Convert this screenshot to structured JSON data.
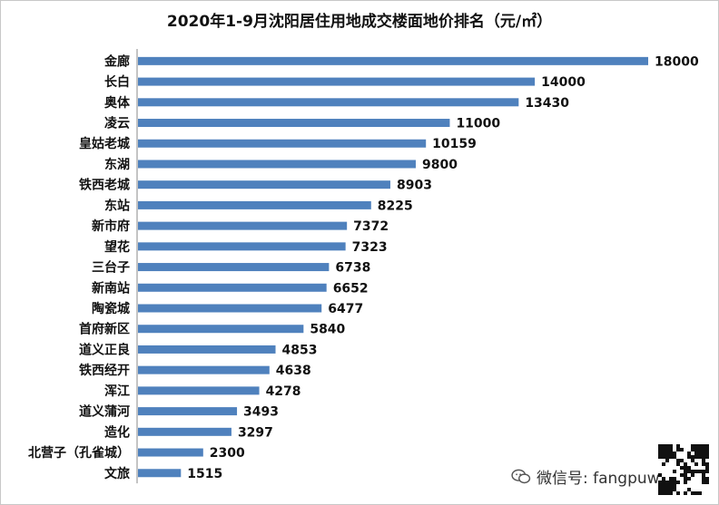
{
  "chart_data": {
    "type": "bar",
    "orientation": "horizontal",
    "title": "2020年1-9月沈阳居住用地成交楼面地价排名（元/㎡）",
    "categories": [
      "金廊",
      "长白",
      "奥体",
      "凌云",
      "皇姑老城",
      "东湖",
      "铁西老城",
      "东站",
      "新市府",
      "望花",
      "三台子",
      "新南站",
      "陶瓷城",
      "首府新区",
      "道义正良",
      "铁西经开",
      "浑江",
      "道义蒲河",
      "造化",
      "北营子（孔雀城）",
      "文旅"
    ],
    "values": [
      18000,
      14000,
      13430,
      11000,
      10159,
      9800,
      8903,
      8225,
      7372,
      7323,
      6738,
      6652,
      6477,
      5840,
      4853,
      4638,
      4278,
      3493,
      3297,
      2300,
      1515
    ],
    "data_labels": [
      "18000",
      "14000",
      "13430",
      "11000",
      "10159",
      "9800",
      "8903",
      "8225",
      "7372",
      "7323",
      "6738",
      "6652",
      "6477",
      "5840",
      "4853",
      "4638",
      "4278",
      "3493",
      "3297",
      "2300",
      "1515"
    ],
    "xlim": [
      0,
      18000
    ],
    "grid": false,
    "legend": "none",
    "bar_color": "#4f81bd"
  },
  "footer": {
    "wechat_label": "微信号: fangpuwang",
    "wechat_icon": "wechat-icon",
    "qr_icon": "qr-code-icon"
  }
}
